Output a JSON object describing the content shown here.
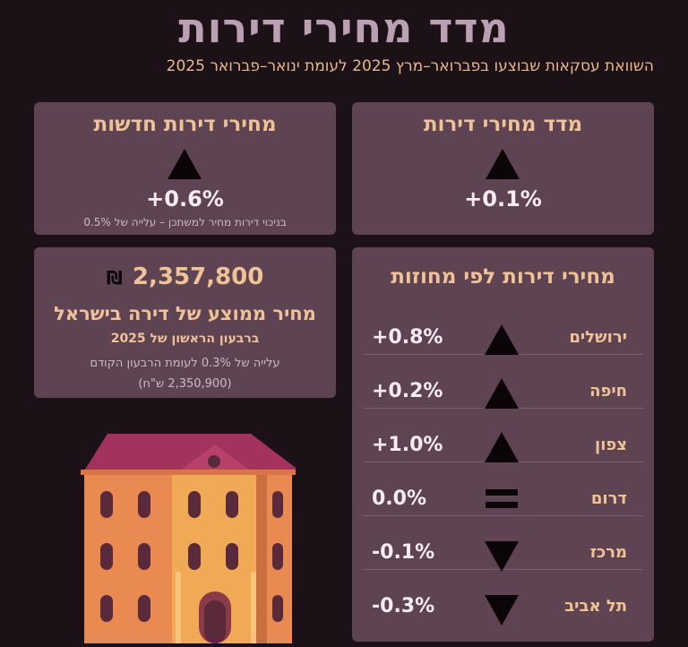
{
  "title": "מדד מחירי דירות",
  "subtitle": "השוואת עסקאות שבוצעו בפברואר–מרץ 2025 לעומת ינואר–פברואר 2025",
  "index_card": {
    "title": "מדד מחירי דירות",
    "direction_icon": "triangle-up-icon",
    "value": "+0.1%"
  },
  "new_card": {
    "title": "מחירי דירות חדשות",
    "direction_icon": "triangle-up-icon",
    "value": "+0.6%",
    "note": "בניכוי דירות מחיר למשתכן – עלייה של 0.5%"
  },
  "avg_card": {
    "amount": "2,357,800",
    "currency_icon": "shekel-icon",
    "currency_symbol": "₪",
    "label": "מחיר ממוצע של דירה בישראל",
    "period": "ברבעון הראשון של 2025",
    "change_note": "עלייה של 0.3% לעומת הרבעון הקודם",
    "previous": "(2,350,900 ש\"ח)"
  },
  "districts": {
    "title": "מחירי דירות לפי מחוזות",
    "rows": [
      {
        "name": "ירושלים",
        "value": "+0.8%",
        "icon": "triangle-up-icon"
      },
      {
        "name": "חיפה",
        "value": "+0.2%",
        "icon": "triangle-up-icon"
      },
      {
        "name": "צפון",
        "value": "+1.0%",
        "icon": "triangle-up-icon"
      },
      {
        "name": "דרום",
        "value": "0.0%",
        "icon": "equals-icon"
      },
      {
        "name": "מרכז",
        "value": "-0.1%",
        "icon": "triangle-down-icon"
      },
      {
        "name": "תל אביב",
        "value": "-0.3%",
        "icon": "triangle-down-icon"
      }
    ]
  },
  "illustration": "apartment-building-icon",
  "colors": {
    "background": "#1d1118",
    "card": "#5e4452",
    "accent": "#f0c298",
    "title": "#b9a0b3"
  }
}
